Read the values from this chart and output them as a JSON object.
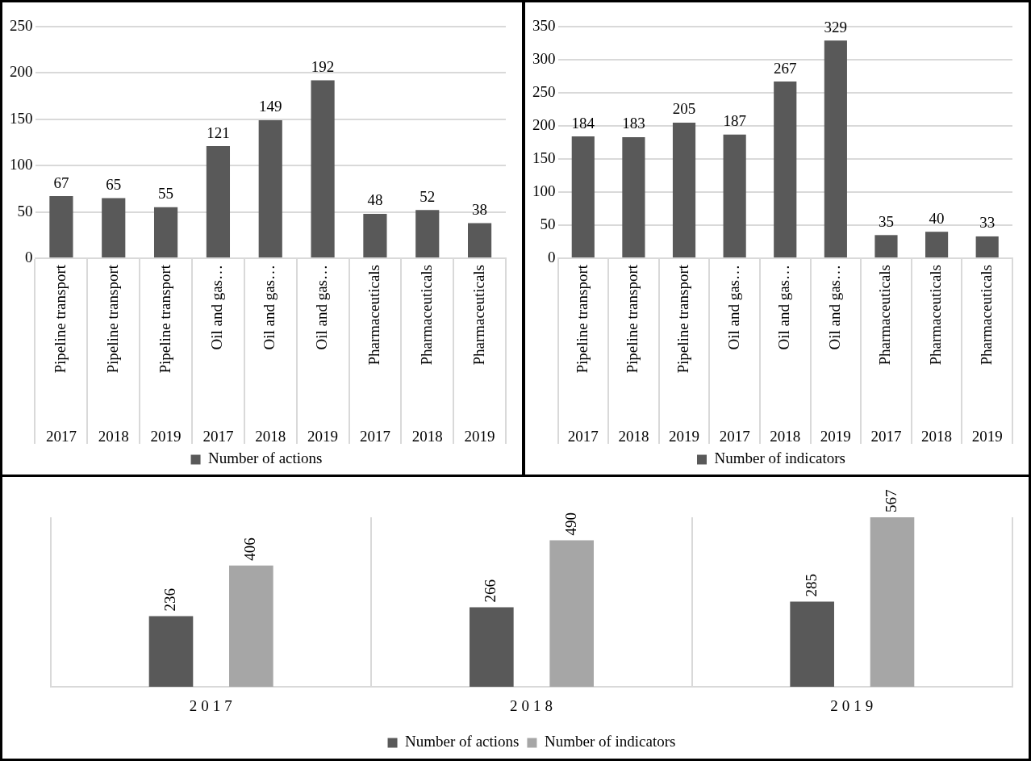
{
  "chart_data": [
    {
      "type": "bar",
      "categories": [
        "Pipeline transport\n2017",
        "Pipeline transport\n2018",
        "Pipeline transport\n2019",
        "Oil and gas…\n2017",
        "Oil and gas…\n2018",
        "Oil and gas…\n2019",
        "Pharmaceuticals\n2017",
        "Pharmaceuticals\n2018",
        "Pharmaceuticals\n2019"
      ],
      "series": [
        {
          "name": "Number of actions",
          "color": "#595959",
          "values": [
            67,
            65,
            55,
            121,
            149,
            192,
            48,
            52,
            38
          ]
        }
      ],
      "ylim": [
        0,
        250
      ],
      "yticks": [
        0,
        50,
        100,
        150,
        200,
        250
      ],
      "grid": "y",
      "legend": "bottom",
      "data_labels": true
    },
    {
      "type": "bar",
      "categories": [
        "Pipeline transport\n2017",
        "Pipeline transport\n2018",
        "Pipeline transport\n2019",
        "Oil and gas…\n2017",
        "Oil and gas…\n2018",
        "Oil and gas…\n2019",
        "Pharmaceuticals\n2017",
        "Pharmaceuticals\n2018",
        "Pharmaceuticals\n2019"
      ],
      "series": [
        {
          "name": "Number of indicators",
          "color": "#595959",
          "values": [
            184,
            183,
            205,
            187,
            267,
            329,
            35,
            40,
            33
          ]
        }
      ],
      "ylim": [
        0,
        350
      ],
      "yticks": [
        0,
        50,
        100,
        150,
        200,
        250,
        300,
        350
      ],
      "grid": "y",
      "legend": "bottom",
      "data_labels": true
    },
    {
      "type": "bar",
      "categories": [
        "2017",
        "2018",
        "2019"
      ],
      "series": [
        {
          "name": "Number of actions",
          "color": "#595959",
          "values": [
            236,
            266,
            285
          ]
        },
        {
          "name": "Number of indicators",
          "color": "#a6a6a6",
          "values": [
            406,
            490,
            567
          ]
        }
      ],
      "grid": "x",
      "legend": "bottom",
      "data_labels": true,
      "tick_labels": "x"
    }
  ]
}
